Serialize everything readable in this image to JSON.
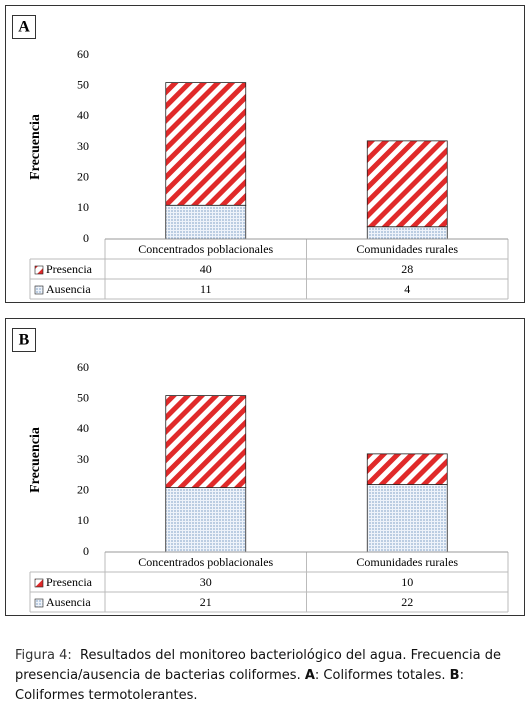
{
  "chart_data": [
    {
      "type": "bar",
      "panel": "A",
      "ylabel": "Frecuencia",
      "categories": [
        "Concentrados poblacionales",
        "Comunidades rurales"
      ],
      "series": [
        {
          "name": "Presencia",
          "color": "#e02a2a",
          "values": [
            40,
            28
          ]
        },
        {
          "name": "Ausencia",
          "color": "#3d6ea8",
          "values": [
            11,
            4
          ]
        }
      ],
      "ylim": [
        0,
        60
      ],
      "yticks": [
        0,
        10,
        20,
        30,
        40,
        50,
        60
      ]
    },
    {
      "type": "bar",
      "panel": "B",
      "ylabel": "Frecuencia",
      "categories": [
        "Concentrados poblacionales",
        "Comunidades rurales"
      ],
      "series": [
        {
          "name": "Presencia",
          "color": "#e02a2a",
          "values": [
            30,
            10
          ]
        },
        {
          "name": "Ausencia",
          "color": "#3d6ea8",
          "values": [
            21,
            22
          ]
        }
      ],
      "ylim": [
        0,
        60
      ],
      "yticks": [
        0,
        10,
        20,
        30,
        40,
        50,
        60
      ]
    }
  ],
  "caption": {
    "label": "Figura 4:",
    "text1": "Resultados del monitoreo bacteriológico del agua. Frecuencia de presencia/ausencia de bacterias coliformes.",
    "bold1": "A",
    "text2": ": Coliformes totales.",
    "bold2": "B",
    "text3": ": Coliformes termotolerantes."
  }
}
